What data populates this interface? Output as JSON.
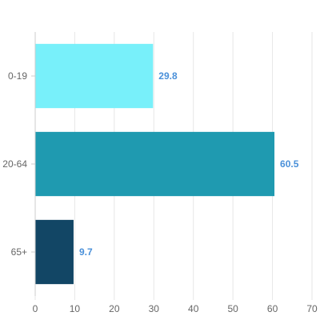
{
  "chart_data": {
    "type": "bar",
    "orientation": "horizontal",
    "categories": [
      "0-19",
      "20-64",
      "65+"
    ],
    "values": [
      29.8,
      60.5,
      9.7
    ],
    "colors": [
      "#78f0fa",
      "#1f9ab0",
      "#124665"
    ],
    "data_labels": [
      "29.8",
      "60.5",
      "9.7"
    ],
    "data_label_color": "#4a90d9",
    "xlim": [
      0,
      70
    ],
    "xticks": [
      0,
      10,
      20,
      30,
      40,
      50,
      60,
      70
    ],
    "grid": true,
    "grid_color": "#e6e6e6",
    "axis_color": "#cccccc",
    "title": "",
    "xlabel": "",
    "ylabel": ""
  }
}
